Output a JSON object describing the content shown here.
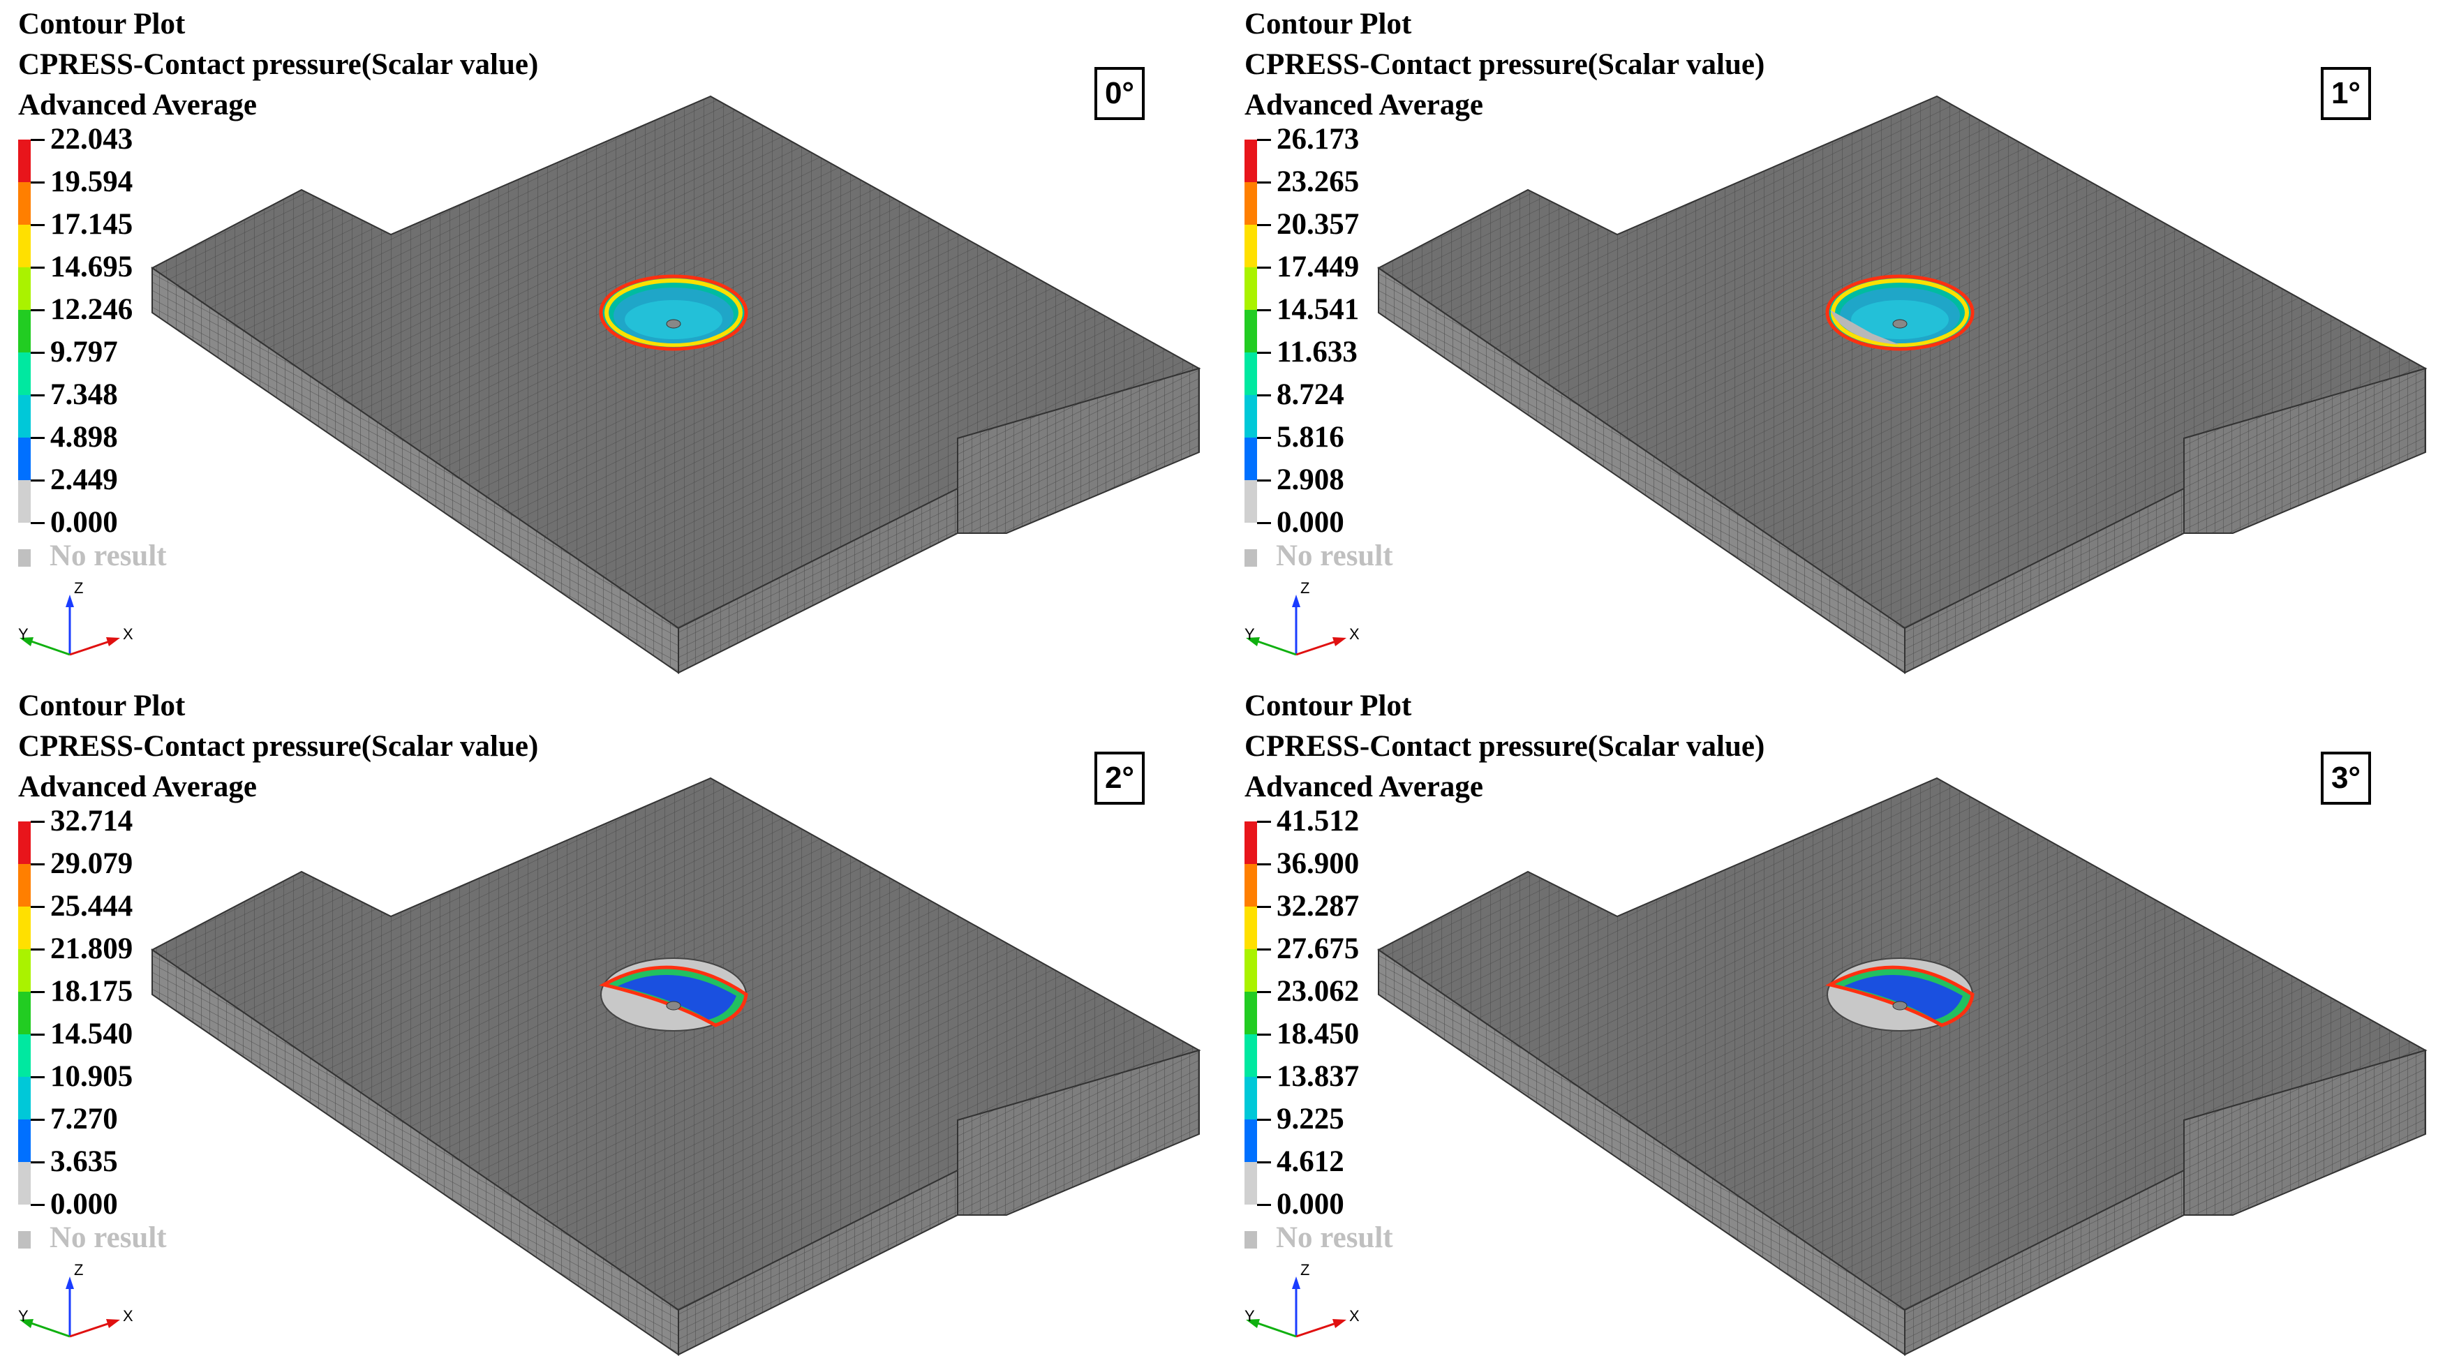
{
  "panels": [
    {
      "title": "Contour Plot",
      "quantity": "CPRESS-Contact pressure(Scalar value)",
      "averaging": "Advanced Average",
      "angle": "0°",
      "legend": [
        "22.043",
        "19.594",
        "17.145",
        "14.695",
        "12.246",
        "9.797",
        "7.348",
        "4.898",
        "2.449",
        "0.000"
      ],
      "no_result": "No result",
      "axes": {
        "z": "Z",
        "y": "Y",
        "x": "X"
      }
    },
    {
      "title": "Contour Plot",
      "quantity": "CPRESS-Contact pressure(Scalar value)",
      "averaging": "Advanced Average",
      "angle": "1°",
      "legend": [
        "26.173",
        "23.265",
        "20.357",
        "17.449",
        "14.541",
        "11.633",
        "8.724",
        "5.816",
        "2.908",
        "0.000"
      ],
      "no_result": "No result",
      "axes": {
        "z": "Z",
        "y": "Y",
        "x": "X"
      }
    },
    {
      "title": "Contour Plot",
      "quantity": "CPRESS-Contact pressure(Scalar value)",
      "averaging": "Advanced Average",
      "angle": "2°",
      "legend": [
        "32.714",
        "29.079",
        "25.444",
        "21.809",
        "18.175",
        "14.540",
        "10.905",
        "7.270",
        "3.635",
        "0.000"
      ],
      "no_result": "No result",
      "axes": {
        "z": "Z",
        "y": "Y",
        "x": "X"
      }
    },
    {
      "title": "Contour Plot",
      "quantity": "CPRESS-Contact pressure(Scalar value)",
      "averaging": "Advanced Average",
      "angle": "3°",
      "legend": [
        "41.512",
        "36.900",
        "32.287",
        "27.675",
        "23.062",
        "18.450",
        "13.837",
        "9.225",
        "4.612",
        "0.000"
      ],
      "no_result": "No result",
      "axes": {
        "z": "Z",
        "y": "Y",
        "x": "X"
      }
    }
  ],
  "colors": {
    "legend_bands": [
      "#e8151b",
      "#ff7f00",
      "#ffe000",
      "#aaf200",
      "#22cc22",
      "#00e8a0",
      "#00c8d8",
      "#0070ff",
      "#d0d0d0"
    ],
    "mesh_top": "#707070",
    "mesh_side": "#8a8a8a",
    "mesh_lines": "#4a4a4a",
    "no_result": "#c0c0c0"
  }
}
